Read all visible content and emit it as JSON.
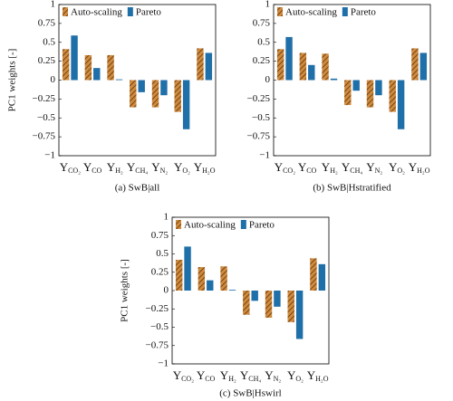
{
  "chart_data": [
    {
      "type": "bar",
      "caption": "(a) SwB|all",
      "ylabel": "PC1 weights [-]",
      "categories": [
        {
          "base": "Y",
          "sub": "CO₂"
        },
        {
          "base": "Y",
          "sub": "CO"
        },
        {
          "base": "Y",
          "sub": "H₂"
        },
        {
          "base": "Y",
          "sub": "CH₄"
        },
        {
          "base": "Y",
          "sub": "N₂"
        },
        {
          "base": "Y",
          "sub": "O₂"
        },
        {
          "base": "Y",
          "sub": "H₂O"
        }
      ],
      "series": [
        {
          "name": "Auto-scaling",
          "color": "#d08a3c",
          "hatch": true,
          "values": [
            0.41,
            0.33,
            0.33,
            -0.36,
            -0.36,
            -0.42,
            0.42
          ]
        },
        {
          "name": "Pareto",
          "color": "#1f6fa8",
          "hatch": false,
          "values": [
            0.59,
            0.16,
            0.01,
            -0.16,
            -0.2,
            -0.65,
            0.36
          ]
        }
      ],
      "ylim": [
        -1,
        1
      ],
      "yticks": [
        {
          "value": -1,
          "label": "−1"
        },
        {
          "value": -0.75,
          "label": "−0.75"
        },
        {
          "value": -0.5,
          "label": "−0.5"
        },
        {
          "value": -0.25,
          "label": "−0.25"
        },
        0,
        0.25,
        0.5,
        0.75,
        1
      ],
      "legend": "upper left"
    },
    {
      "type": "bar",
      "caption": "(b) SwB|Hstratified",
      "categories": [
        {
          "base": "Y",
          "sub": "CO₂"
        },
        {
          "base": "Y",
          "sub": "CO"
        },
        {
          "base": "Y",
          "sub": "H₂"
        },
        {
          "base": "Y",
          "sub": "CH₄"
        },
        {
          "base": "Y",
          "sub": "N₂"
        },
        {
          "base": "Y",
          "sub": "O₂"
        },
        {
          "base": "Y",
          "sub": "H₂O"
        }
      ],
      "series": [
        {
          "name": "Auto-scaling",
          "color": "#d08a3c",
          "hatch": true,
          "values": [
            0.41,
            0.36,
            0.35,
            -0.33,
            -0.36,
            -0.42,
            0.42
          ]
        },
        {
          "name": "Pareto",
          "color": "#1f6fa8",
          "hatch": false,
          "values": [
            0.57,
            0.2,
            0.02,
            -0.14,
            -0.2,
            -0.65,
            0.36
          ]
        }
      ],
      "ylim": [
        -1,
        1
      ],
      "yticks": [
        {
          "value": -1,
          "label": "−1"
        },
        {
          "value": -0.75,
          "label": "−0.75"
        },
        {
          "value": -0.5,
          "label": "−0.5"
        },
        {
          "value": -0.25,
          "label": "−0.25"
        },
        0,
        0.25,
        0.5,
        0.75,
        1
      ],
      "legend": "upper left"
    },
    {
      "type": "bar",
      "caption": "(c) SwB|Hswirl",
      "ylabel": "PC1 weights [-]",
      "categories": [
        {
          "base": "Y",
          "sub": "CO₂"
        },
        {
          "base": "Y",
          "sub": "CO"
        },
        {
          "base": "Y",
          "sub": "H₂"
        },
        {
          "base": "Y",
          "sub": "CH₄"
        },
        {
          "base": "Y",
          "sub": "N₂"
        },
        {
          "base": "Y",
          "sub": "O₂"
        },
        {
          "base": "Y",
          "sub": "H₂O"
        }
      ],
      "series": [
        {
          "name": "Auto-scaling",
          "color": "#d08a3c",
          "hatch": true,
          "values": [
            0.42,
            0.32,
            0.33,
            -0.33,
            -0.37,
            -0.43,
            0.44
          ]
        },
        {
          "name": "Pareto",
          "color": "#1f6fa8",
          "hatch": false,
          "values": [
            0.6,
            0.14,
            0.01,
            -0.14,
            -0.22,
            -0.66,
            0.36
          ]
        }
      ],
      "ylim": [
        -1,
        1
      ],
      "yticks": [
        {
          "value": -1,
          "label": "−1"
        },
        {
          "value": -0.75,
          "label": "−0.75"
        },
        {
          "value": -0.5,
          "label": "−0.5"
        },
        {
          "value": -0.25,
          "label": "−0.25"
        },
        0,
        0.25,
        0.5,
        0.75,
        1
      ],
      "legend": "upper left"
    }
  ]
}
